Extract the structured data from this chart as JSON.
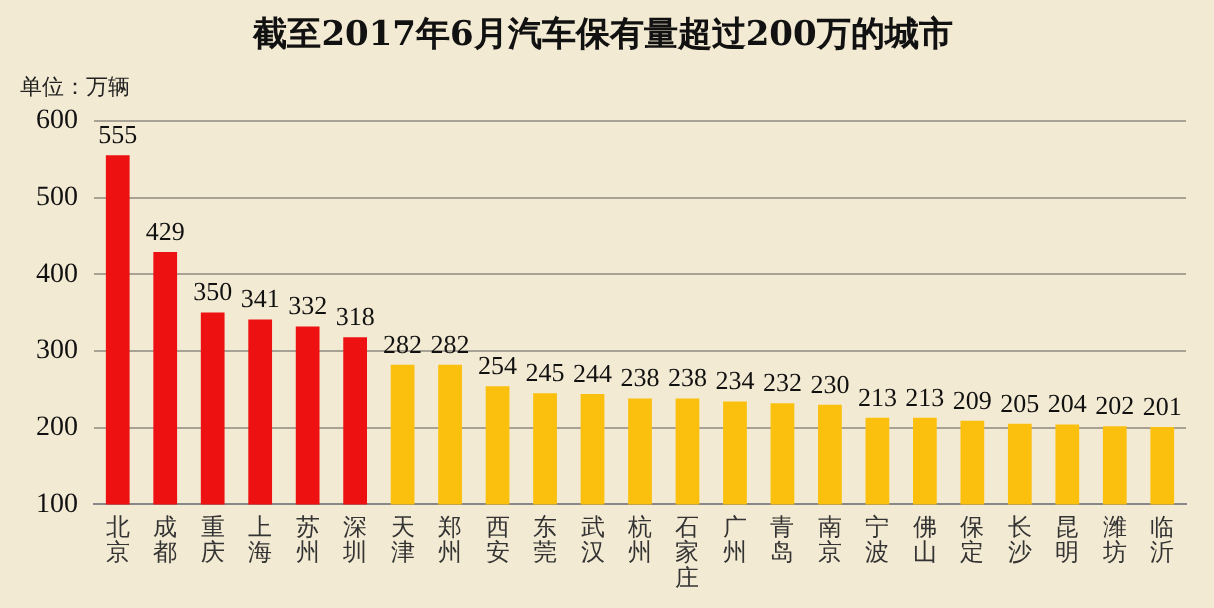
{
  "chart_data": {
    "type": "bar",
    "title": "截至2017年6月汽车保有量超过200万的城市",
    "ylabel": "单位：万辆",
    "categories": [
      "北京",
      "成都",
      "重庆",
      "上海",
      "苏州",
      "深圳",
      "天津",
      "郑州",
      "西安",
      "东莞",
      "武汉",
      "杭州",
      "石家庄",
      "广州",
      "青岛",
      "南京",
      "宁波",
      "佛山",
      "保定",
      "长沙",
      "昆明",
      "潍坊",
      "临沂"
    ],
    "values": [
      555,
      429,
      350,
      341,
      332,
      318,
      282,
      282,
      254,
      245,
      244,
      238,
      238,
      234,
      232,
      230,
      213,
      213,
      209,
      205,
      204,
      202,
      201
    ],
    "colors": [
      "#ee1111",
      "#ee1111",
      "#ee1111",
      "#ee1111",
      "#ee1111",
      "#ee1111",
      "#fbbf0e",
      "#fbbf0e",
      "#fbbf0e",
      "#fbbf0e",
      "#fbbf0e",
      "#fbbf0e",
      "#fbbf0e",
      "#fbbf0e",
      "#fbbf0e",
      "#fbbf0e",
      "#fbbf0e",
      "#fbbf0e",
      "#fbbf0e",
      "#fbbf0e",
      "#fbbf0e",
      "#fbbf0e",
      "#fbbf0e"
    ],
    "ylim": [
      100,
      600
    ],
    "yticks": [
      100,
      200,
      300,
      400,
      500,
      600
    ],
    "grid": "y",
    "data_labels": true
  }
}
